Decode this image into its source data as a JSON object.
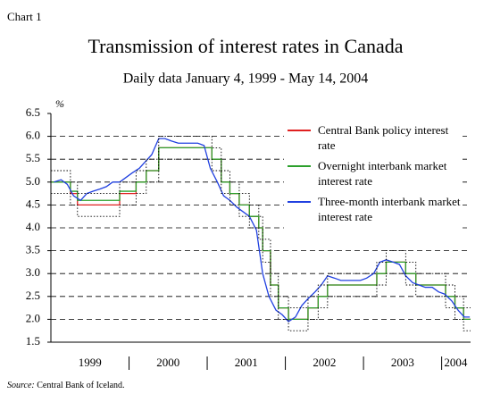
{
  "chart_data": {
    "type": "line",
    "chart_label": "Chart 1",
    "title": "Transmission of interest rates in Canada",
    "subtitle": "Daily data January 4, 1999 - May 14, 2004",
    "y_unit": "%",
    "source_label": "Source:",
    "source_text": "Central Bank of Iceland.",
    "xlim": [
      1999,
      2004.37
    ],
    "ylim": [
      1.5,
      6.5
    ],
    "yticks": [
      1.5,
      {
        "value": 2,
        "label": "2.0"
      },
      2.5,
      {
        "value": 3,
        "label": "3.0"
      },
      3.5,
      {
        "value": 4,
        "label": "4.0"
      },
      4.5,
      {
        "value": 5,
        "label": "5.0"
      },
      5.5,
      {
        "value": 6,
        "label": "6.0"
      },
      6.5
    ],
    "xticks": [
      {
        "value": 1999.5,
        "label": "1999"
      },
      {
        "value": 2000.5,
        "label": "2000"
      },
      {
        "value": 2001.5,
        "label": "2001"
      },
      {
        "value": 2002.5,
        "label": "2002"
      },
      {
        "value": 2003.5,
        "label": "2003"
      },
      {
        "value": 2004.18,
        "label": "2004"
      }
    ],
    "xticks_minor": [
      2000,
      2001,
      2002,
      2003,
      2004
    ],
    "grid": true,
    "legend": "upper right",
    "series": [
      {
        "name": "Central Bank policy interest rate",
        "color": "#e02020",
        "step": true,
        "x": [
          1999.0,
          1999.25,
          1999.34,
          1999.88,
          2000.09,
          2000.22,
          2000.38,
          2001.06,
          2001.18,
          2001.29,
          2001.41,
          2001.54,
          2001.66,
          2001.71,
          2001.81,
          2001.91,
          2002.04,
          2002.29,
          2002.42,
          2002.54,
          2003.17,
          2003.29,
          2003.54,
          2003.67,
          2004.05,
          2004.17,
          2004.28
        ],
        "values": [
          5.0,
          4.75,
          4.5,
          4.75,
          5.0,
          5.25,
          5.75,
          5.5,
          5.0,
          4.75,
          4.5,
          4.25,
          4.0,
          3.5,
          2.75,
          2.25,
          2.0,
          2.25,
          2.5,
          2.75,
          3.0,
          3.25,
          3.0,
          2.75,
          2.5,
          2.25,
          2.0
        ]
      },
      {
        "name": "Overnight interbank market interest rate",
        "color": "#2ca02c",
        "step": true,
        "x": [
          1999.0,
          1999.25,
          1999.34,
          1999.88,
          2000.09,
          2000.22,
          2000.38,
          2001.06,
          2001.18,
          2001.29,
          2001.41,
          2001.54,
          2001.66,
          2001.71,
          2001.81,
          2001.91,
          2002.04,
          2002.29,
          2002.42,
          2002.54,
          2003.17,
          2003.29,
          2003.54,
          2003.67,
          2004.05,
          2004.17,
          2004.28
        ],
        "values": [
          5.0,
          4.8,
          4.6,
          4.8,
          5.0,
          5.25,
          5.75,
          5.5,
          5.0,
          4.75,
          4.5,
          4.25,
          4.0,
          3.5,
          2.75,
          2.25,
          2.0,
          2.25,
          2.5,
          2.75,
          3.0,
          3.25,
          3.0,
          2.75,
          2.5,
          2.25,
          2.0
        ]
      },
      {
        "name": "Three-month interbank market interest rate",
        "color": "#2040e0",
        "x": [
          1999.04,
          1999.13,
          1999.21,
          1999.29,
          1999.38,
          1999.46,
          1999.54,
          1999.63,
          1999.71,
          1999.79,
          1999.88,
          1999.96,
          2000.04,
          2000.13,
          2000.21,
          2000.29,
          2000.38,
          2000.46,
          2000.54,
          2000.63,
          2000.71,
          2000.79,
          2000.88,
          2000.96,
          2001.04,
          2001.13,
          2001.21,
          2001.29,
          2001.38,
          2001.46,
          2001.54,
          2001.63,
          2001.71,
          2001.79,
          2001.88,
          2001.96,
          2002.04,
          2002.13,
          2002.21,
          2002.29,
          2002.38,
          2002.46,
          2002.54,
          2002.63,
          2002.71,
          2002.79,
          2002.88,
          2002.96,
          2003.04,
          2003.13,
          2003.21,
          2003.29,
          2003.38,
          2003.46,
          2003.54,
          2003.63,
          2003.71,
          2003.79,
          2003.88,
          2003.96,
          2004.04,
          2004.13,
          2004.21,
          2004.29,
          2004.36
        ],
        "values": [
          5.0,
          5.05,
          4.95,
          4.7,
          4.6,
          4.75,
          4.8,
          4.85,
          4.9,
          5.0,
          5.0,
          5.1,
          5.2,
          5.3,
          5.45,
          5.6,
          5.95,
          5.95,
          5.9,
          5.85,
          5.85,
          5.85,
          5.85,
          5.8,
          5.3,
          5.0,
          4.7,
          4.6,
          4.45,
          4.35,
          4.25,
          3.95,
          3.0,
          2.5,
          2.2,
          2.1,
          1.95,
          2.05,
          2.3,
          2.45,
          2.6,
          2.75,
          2.95,
          2.9,
          2.85,
          2.85,
          2.85,
          2.85,
          2.9,
          3.0,
          3.25,
          3.3,
          3.25,
          3.2,
          2.95,
          2.8,
          2.75,
          2.7,
          2.7,
          2.6,
          2.55,
          2.4,
          2.2,
          2.05,
          2.05
        ]
      },
      {
        "color": "#000000",
        "step": true,
        "dotted": true,
        "x": [
          1999.0,
          1999.25,
          1999.34,
          1999.88,
          2000.09,
          2000.22,
          2000.38,
          2001.06,
          2001.18,
          2001.29,
          2001.41,
          2001.54,
          2001.66,
          2001.71,
          2001.81,
          2001.91,
          2002.04,
          2002.29,
          2002.42,
          2002.54,
          2003.17,
          2003.29,
          2003.54,
          2003.67,
          2004.05,
          2004.17,
          2004.28
        ],
        "values": [
          5.25,
          5.0,
          4.75,
          5.0,
          5.25,
          5.5,
          6.0,
          5.75,
          5.25,
          5.0,
          4.75,
          4.5,
          4.25,
          3.75,
          3.0,
          2.5,
          2.25,
          2.5,
          2.75,
          3.0,
          3.25,
          3.5,
          3.25,
          3.0,
          2.75,
          2.5,
          2.25
        ]
      },
      {
        "color": "#000000",
        "step": true,
        "dotted": true,
        "x": [
          1999.0,
          1999.25,
          1999.34,
          1999.88,
          2000.09,
          2000.22,
          2000.38,
          2001.06,
          2001.18,
          2001.29,
          2001.41,
          2001.54,
          2001.66,
          2001.71,
          2001.81,
          2001.91,
          2002.04,
          2002.29,
          2002.42,
          2002.54,
          2003.17,
          2003.29,
          2003.54,
          2003.67,
          2004.05,
          2004.17,
          2004.28
        ],
        "values": [
          4.75,
          4.5,
          4.25,
          4.5,
          4.75,
          5.0,
          5.5,
          5.25,
          4.75,
          4.5,
          4.25,
          4.0,
          3.75,
          3.25,
          2.5,
          2.0,
          1.75,
          2.0,
          2.25,
          2.5,
          2.75,
          3.0,
          2.75,
          2.5,
          2.25,
          2.0,
          1.75
        ]
      }
    ]
  }
}
